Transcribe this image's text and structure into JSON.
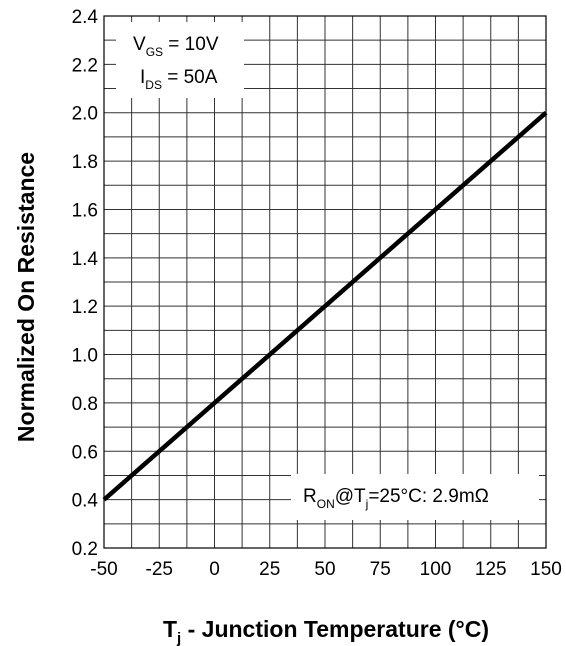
{
  "chart_data": {
    "type": "line",
    "xlabel": {
      "main": "T",
      "sub": "j",
      "rest": " - Junction Temperature (°C)"
    },
    "ylabel": "Normalized On Resistance",
    "xlim": [
      -50,
      150
    ],
    "ylim": [
      0.2,
      2.4
    ],
    "x_ticks": [
      -50,
      -25,
      0,
      25,
      50,
      75,
      100,
      125,
      150
    ],
    "x_tick_labels": [
      "-50",
      "-25",
      "0",
      "25",
      "50",
      "75",
      "100",
      "125",
      "150"
    ],
    "y_ticks": [
      0.2,
      0.4,
      0.6,
      0.8,
      1.0,
      1.2,
      1.4,
      1.6,
      1.8,
      2.0,
      2.2,
      2.4
    ],
    "y_tick_labels": [
      "0.2",
      "0.4",
      "0.6",
      "0.8",
      "1.0",
      "1.2",
      "1.4",
      "1.6",
      "1.8",
      "2.0",
      "2.2",
      "2.4"
    ],
    "x_minor_step": 12.5,
    "y_minor_step": 0.1,
    "grid": true,
    "series": [
      {
        "x": [
          -50,
          150
        ],
        "y": [
          0.4,
          2.0
        ]
      }
    ],
    "annotations": {
      "conditions": [
        {
          "main": "V",
          "sub": "GS",
          "rest": " = 10V"
        },
        {
          "main": "I",
          "sub": "DS",
          "rest": " = 50A"
        }
      ],
      "ron": {
        "main": "R",
        "sub": "ON",
        "mid": "@T",
        "sub2": "j",
        "rest": "=25°C: 2.9mΩ"
      }
    }
  }
}
